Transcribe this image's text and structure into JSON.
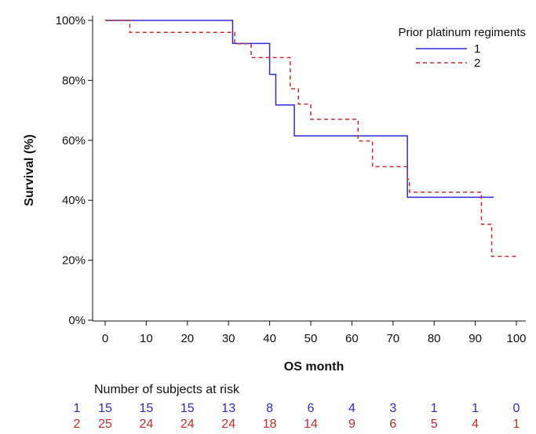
{
  "chart_data": {
    "type": "line",
    "subtype": "kaplan-meier",
    "xlabel": "OS month",
    "ylabel": "Survival (%)",
    "xlim": [
      0,
      100
    ],
    "ylim": [
      0,
      100
    ],
    "x_ticks": [
      0,
      10,
      20,
      30,
      40,
      50,
      60,
      70,
      80,
      90,
      100
    ],
    "y_ticks": [
      0,
      20,
      40,
      60,
      80,
      100
    ],
    "y_tick_labels": [
      "0%",
      "20%",
      "40%",
      "60%",
      "80%",
      "100%"
    ],
    "legend": {
      "title": "Prior platinum regiments",
      "placement": "top-right"
    },
    "series": [
      {
        "name": "1",
        "color": "#2b2bd6",
        "line_style": "solid",
        "x": [
          0,
          31,
          40,
          41.5,
          46,
          73.5,
          94.5
        ],
        "y": [
          100,
          92.3,
          82,
          71.8,
          61.5,
          41,
          41
        ]
      },
      {
        "name": "2",
        "color": "#cc2a2a",
        "line_style": "dashed",
        "x": [
          0,
          6,
          31.5,
          35.5,
          45,
          47,
          50,
          61.5,
          65,
          73.5,
          74,
          91.5,
          94,
          100
        ],
        "y": [
          100,
          96,
          92.2,
          87.6,
          77.2,
          72.1,
          67,
          59.8,
          51.2,
          47,
          42.7,
          32,
          21.3,
          21.3
        ]
      }
    ],
    "risk_table": {
      "title": "Number of subjects at risk",
      "rows": [
        {
          "label": "1",
          "color": "#2b2bd6",
          "values": [
            15,
            15,
            15,
            13,
            8,
            6,
            4,
            3,
            1,
            1,
            0
          ]
        },
        {
          "label": "2",
          "color": "#cc2a2a",
          "values": [
            25,
            24,
            24,
            24,
            18,
            14,
            9,
            6,
            5,
            4,
            1
          ]
        }
      ]
    }
  }
}
